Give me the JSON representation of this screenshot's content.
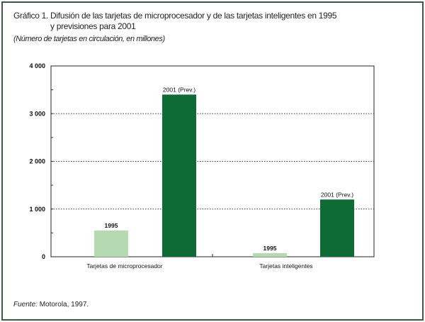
{
  "chart_data": {
    "type": "bar",
    "title_number": "Gráfico 1.",
    "title_line1": "Difusión de las tarjetas de microprocesador y de las tarjetas inteligentes en 1995",
    "title_line2": "y previsiones para 2001",
    "subtitle": "(Número de tarjetas en circulación, en millones)",
    "categories": [
      "Tarjetas de microprocesador",
      "Tarjetas inteligentes"
    ],
    "series": [
      {
        "name": "1995",
        "values": [
          550,
          75
        ],
        "color": "#b5d9b0",
        "labels": [
          "1995",
          "1995"
        ]
      },
      {
        "name": "2001 (Prev.)",
        "values": [
          3400,
          1200
        ],
        "color": "#0f6b35",
        "labels": [
          "2001 (Prev.)",
          "2001 (Prev.)"
        ]
      }
    ],
    "ylim": [
      0,
      4000
    ],
    "yticks": [
      0,
      1000,
      2000,
      3000,
      4000
    ],
    "ytick_labels": [
      "0",
      "1 000",
      "2 000",
      "3 000",
      "4 000"
    ],
    "grid": "dotted horizontal",
    "legend": "none"
  },
  "footer": {
    "source_label": "Fuente:",
    "source_text": " Motorola, 1997."
  },
  "colors": {
    "frame": "#3d5a47",
    "bar_1995": "#b5d9b0",
    "bar_2001": "#0f6b35"
  }
}
